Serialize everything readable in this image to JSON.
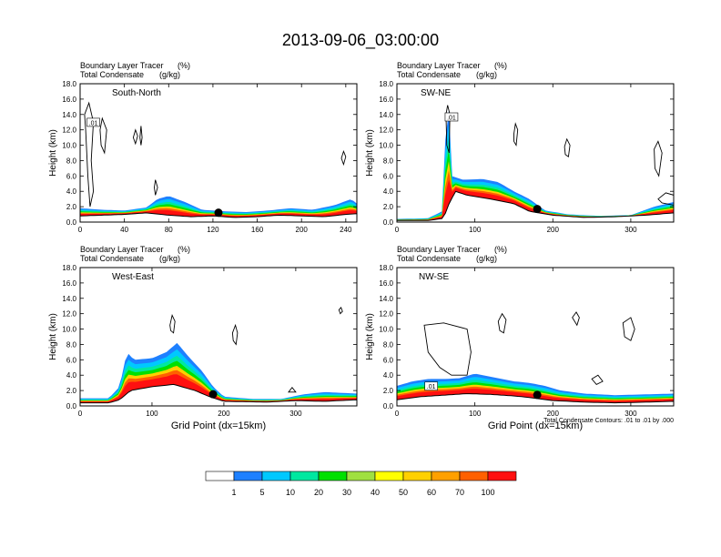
{
  "title": "2013-09-06_03:00:00",
  "colorbar": {
    "colors": [
      "#ffffff",
      "#1e80ff",
      "#00c8ff",
      "#00e8a0",
      "#00e000",
      "#a0e040",
      "#ffff00",
      "#ffd000",
      "#ffa000",
      "#ff6000",
      "#ff1010"
    ],
    "labels": [
      "1",
      "5",
      "10",
      "20",
      "30",
      "40",
      "50",
      "60",
      "70",
      "100"
    ]
  },
  "chart_data": [
    {
      "type": "contour-cross-section",
      "label": "South-North",
      "header_left_1": "Boundary Layer Tracer",
      "header_unit_1": "(%)",
      "header_left_2": "Total Condensate",
      "header_unit_2": "(g/kg)",
      "ylabel": "Height (km)",
      "xlabel": "",
      "xlim": [
        0,
        250
      ],
      "ylim": [
        0,
        18
      ],
      "xticks": [
        "0",
        "40",
        "80",
        "120",
        "160",
        "200",
        "240"
      ],
      "xtick_values": [
        0,
        40,
        80,
        120,
        160,
        200,
        240
      ],
      "yticks": [
        "0.0",
        "2.0",
        "4.0",
        "6.0",
        "8.0",
        "10.0",
        "12.0",
        "14.0",
        "16.0",
        "18.0"
      ],
      "contour_label": ".01",
      "contour_label_at": [
        12,
        12.8
      ],
      "marker_x": 125,
      "terrain": [
        [
          0,
          0.8
        ],
        [
          20,
          0.9
        ],
        [
          40,
          1.0
        ],
        [
          60,
          1.2
        ],
        [
          80,
          0.9
        ],
        [
          100,
          0.7
        ],
        [
          120,
          0.8
        ],
        [
          140,
          0.6
        ],
        [
          160,
          0.7
        ],
        [
          180,
          0.9
        ],
        [
          200,
          0.8
        ],
        [
          220,
          0.7
        ],
        [
          240,
          1.0
        ],
        [
          250,
          1.1
        ]
      ],
      "tracer_top": [
        [
          0,
          1.8
        ],
        [
          20,
          1.6
        ],
        [
          40,
          1.5
        ],
        [
          60,
          1.9
        ],
        [
          70,
          3.0
        ],
        [
          80,
          3.4
        ],
        [
          95,
          2.6
        ],
        [
          110,
          1.6
        ],
        [
          130,
          1.4
        ],
        [
          150,
          1.3
        ],
        [
          170,
          1.5
        ],
        [
          190,
          1.8
        ],
        [
          210,
          1.6
        ],
        [
          230,
          2.2
        ],
        [
          245,
          3.0
        ],
        [
          250,
          2.4
        ]
      ],
      "cloud_contours": [
        [
          [
            5,
            12
          ],
          [
            4,
            14
          ],
          [
            8,
            15.5
          ],
          [
            12,
            13
          ],
          [
            10,
            8
          ],
          [
            12,
            4
          ],
          [
            9,
            2
          ],
          [
            7,
            6
          ]
        ],
        [
          [
            18,
            12
          ],
          [
            20,
            13.5
          ],
          [
            24,
            12
          ],
          [
            22,
            9
          ],
          [
            19,
            10
          ]
        ],
        [
          [
            50,
            12
          ],
          [
            52,
            11.2
          ],
          [
            50,
            10.2
          ],
          [
            48,
            11
          ]
        ],
        [
          [
            55,
            12.5
          ],
          [
            56,
            11
          ],
          [
            55,
            10
          ],
          [
            54,
            11
          ]
        ],
        [
          [
            68,
            5.5
          ],
          [
            70,
            4.5
          ],
          [
            68,
            3.5
          ],
          [
            67,
            4.5
          ]
        ],
        [
          [
            238,
            9.2
          ],
          [
            240,
            8.5
          ],
          [
            238,
            7.5
          ],
          [
            236,
            8.3
          ]
        ]
      ]
    },
    {
      "type": "contour-cross-section",
      "label": "SW-NE",
      "header_left_1": "Boundary Layer Tracer",
      "header_unit_1": "(%)",
      "header_left_2": "Total Condensate",
      "header_unit_2": "(g/kg)",
      "ylabel": "Height (km)",
      "xlabel": "",
      "xlim": [
        0,
        355
      ],
      "ylim": [
        0,
        18
      ],
      "xticks": [
        "0",
        "100",
        "200",
        "300"
      ],
      "xtick_values": [
        0,
        100,
        200,
        300
      ],
      "yticks": [
        "0.0",
        "2.0",
        "4.0",
        "6.0",
        "8.0",
        "10.0",
        "12.0",
        "14.0",
        "16.0",
        "18.0"
      ],
      "contour_label": ".01",
      "contour_label_at": [
        70,
        13.5
      ],
      "marker_x": 180,
      "terrain": [
        [
          0,
          0.2
        ],
        [
          40,
          0.2
        ],
        [
          60,
          0.5
        ],
        [
          65,
          2.0
        ],
        [
          75,
          4.0
        ],
        [
          90,
          3.5
        ],
        [
          120,
          3.0
        ],
        [
          150,
          2.4
        ],
        [
          170,
          1.4
        ],
        [
          200,
          0.9
        ],
        [
          240,
          0.6
        ],
        [
          280,
          0.7
        ],
        [
          320,
          0.9
        ],
        [
          355,
          1.2
        ]
      ],
      "tracer_top": [
        [
          0,
          0.4
        ],
        [
          40,
          0.5
        ],
        [
          60,
          1.5
        ],
        [
          63,
          14.5
        ],
        [
          67,
          14.5
        ],
        [
          70,
          6.0
        ],
        [
          85,
          5.5
        ],
        [
          110,
          5.6
        ],
        [
          130,
          5.2
        ],
        [
          150,
          4.0
        ],
        [
          170,
          3.0
        ],
        [
          190,
          1.5
        ],
        [
          220,
          1.0
        ],
        [
          260,
          0.8
        ],
        [
          300,
          0.9
        ],
        [
          330,
          2.0
        ],
        [
          355,
          2.6
        ]
      ],
      "cloud_contours": [
        [
          [
            63,
            14
          ],
          [
            65,
            15.2
          ],
          [
            68,
            14
          ],
          [
            67,
            9
          ],
          [
            64,
            10
          ]
        ],
        [
          [
            150,
            11.5
          ],
          [
            152,
            12.8
          ],
          [
            155,
            12
          ],
          [
            153,
            10
          ],
          [
            150,
            10.5
          ]
        ],
        [
          [
            215,
            9.8
          ],
          [
            218,
            10.8
          ],
          [
            222,
            10
          ],
          [
            220,
            8.5
          ],
          [
            216,
            8.8
          ]
        ],
        [
          [
            330,
            9.5
          ],
          [
            335,
            10.5
          ],
          [
            340,
            9
          ],
          [
            336,
            6
          ],
          [
            331,
            7
          ]
        ],
        [
          [
            335,
            3.0
          ],
          [
            345,
            3.8
          ],
          [
            355,
            3.5
          ],
          [
            355,
            2.2
          ],
          [
            340,
            2.5
          ]
        ]
      ]
    },
    {
      "type": "contour-cross-section",
      "label": "West-East",
      "header_left_1": "Boundary Layer Tracer",
      "header_unit_1": "(%)",
      "header_left_2": "Total Condensate",
      "header_unit_2": "(g/kg)",
      "ylabel": "Height (km)",
      "xlabel": "Grid Point (dx=15km)",
      "xlim": [
        0,
        385
      ],
      "ylim": [
        0,
        18
      ],
      "xticks": [
        "0",
        "100",
        "200",
        "300"
      ],
      "xtick_values": [
        0,
        100,
        200,
        300
      ],
      "yticks": [
        "0.0",
        "2.0",
        "4.0",
        "6.0",
        "8.0",
        "10.0",
        "12.0",
        "14.0",
        "16.0",
        "18.0"
      ],
      "contour_label": "",
      "contour_label_at": [
        0,
        0
      ],
      "marker_x": 185,
      "terrain": [
        [
          0,
          0.4
        ],
        [
          40,
          0.4
        ],
        [
          55,
          0.8
        ],
        [
          70,
          2.0
        ],
        [
          100,
          2.5
        ],
        [
          130,
          2.8
        ],
        [
          160,
          2.0
        ],
        [
          180,
          1.2
        ],
        [
          200,
          0.6
        ],
        [
          260,
          0.5
        ],
        [
          300,
          0.7
        ],
        [
          340,
          0.6
        ],
        [
          385,
          0.8
        ]
      ],
      "tracer_top": [
        [
          0,
          1.0
        ],
        [
          40,
          1.0
        ],
        [
          55,
          2.5
        ],
        [
          65,
          7.0
        ],
        [
          75,
          6.0
        ],
        [
          100,
          6.2
        ],
        [
          120,
          7.0
        ],
        [
          135,
          8.2
        ],
        [
          150,
          6.5
        ],
        [
          170,
          4.5
        ],
        [
          185,
          2.5
        ],
        [
          200,
          1.2
        ],
        [
          240,
          0.9
        ],
        [
          280,
          0.9
        ],
        [
          310,
          1.5
        ],
        [
          340,
          1.8
        ],
        [
          385,
          1.6
        ]
      ],
      "cloud_contours": [
        [
          [
            125,
            10.5
          ],
          [
            128,
            11.8
          ],
          [
            132,
            11
          ],
          [
            130,
            9.5
          ],
          [
            126,
            9.8
          ]
        ],
        [
          [
            212,
            9.5
          ],
          [
            216,
            10.5
          ],
          [
            219,
            9.5
          ],
          [
            217,
            8.0
          ],
          [
            213,
            8.5
          ]
        ],
        [
          [
            360,
            12.5
          ],
          [
            363,
            12.8
          ],
          [
            365,
            12.3
          ],
          [
            362,
            12.0
          ]
        ],
        [
          [
            290,
            1.8
          ],
          [
            295,
            2.4
          ],
          [
            300,
            1.8
          ]
        ]
      ]
    },
    {
      "type": "contour-cross-section",
      "label": "NW-SE",
      "header_left_1": "Boundary Layer Tracer",
      "header_unit_1": "(%)",
      "header_left_2": "Total Condensate",
      "header_unit_2": "(g/kg)",
      "ylabel": "Height (km)",
      "xlabel": "Grid Point (dx=15km)",
      "xlim": [
        0,
        355
      ],
      "ylim": [
        0,
        18
      ],
      "xticks": [
        "0",
        "100",
        "200",
        "300"
      ],
      "xtick_values": [
        0,
        100,
        200,
        300
      ],
      "yticks": [
        "0.0",
        "2.0",
        "4.0",
        "6.0",
        "8.0",
        "10.0",
        "12.0",
        "14.0",
        "16.0",
        "18.0"
      ],
      "contour_label": ".01",
      "contour_label_at": [
        44,
        2.4
      ],
      "marker_x": 180,
      "note": "Total Condensate Contours: .01 to .01 by .000",
      "terrain": [
        [
          0,
          0.8
        ],
        [
          30,
          1.2
        ],
        [
          60,
          1.4
        ],
        [
          90,
          1.6
        ],
        [
          120,
          1.5
        ],
        [
          150,
          1.3
        ],
        [
          170,
          1.1
        ],
        [
          200,
          0.7
        ],
        [
          240,
          0.5
        ],
        [
          280,
          0.4
        ],
        [
          320,
          0.5
        ],
        [
          355,
          0.6
        ]
      ],
      "tracer_top": [
        [
          0,
          2.6
        ],
        [
          20,
          3.2
        ],
        [
          40,
          3.5
        ],
        [
          60,
          3.5
        ],
        [
          80,
          3.6
        ],
        [
          100,
          4.2
        ],
        [
          130,
          3.6
        ],
        [
          150,
          3.2
        ],
        [
          170,
          3.0
        ],
        [
          190,
          2.6
        ],
        [
          210,
          2.0
        ],
        [
          240,
          1.6
        ],
        [
          280,
          1.4
        ],
        [
          320,
          1.5
        ],
        [
          355,
          1.6
        ]
      ],
      "cloud_contours": [
        [
          [
            35,
            10.5
          ],
          [
            60,
            10.8
          ],
          [
            90,
            10.0
          ],
          [
            95,
            7
          ],
          [
            90,
            4
          ],
          [
            70,
            4
          ],
          [
            55,
            5
          ],
          [
            40,
            7
          ]
        ],
        [
          [
            130,
            11
          ],
          [
            135,
            12
          ],
          [
            140,
            11.2
          ],
          [
            137,
            9.5
          ],
          [
            132,
            9.8
          ]
        ],
        [
          [
            225,
            11.5
          ],
          [
            230,
            12.2
          ],
          [
            234,
            11.5
          ],
          [
            231,
            10.5
          ]
        ],
        [
          [
            290,
            10.8
          ],
          [
            300,
            11.5
          ],
          [
            305,
            10
          ],
          [
            300,
            8.5
          ],
          [
            292,
            9
          ]
        ],
        [
          [
            250,
            3.5
          ],
          [
            258,
            4.0
          ],
          [
            264,
            3.2
          ],
          [
            256,
            2.8
          ]
        ]
      ]
    }
  ]
}
